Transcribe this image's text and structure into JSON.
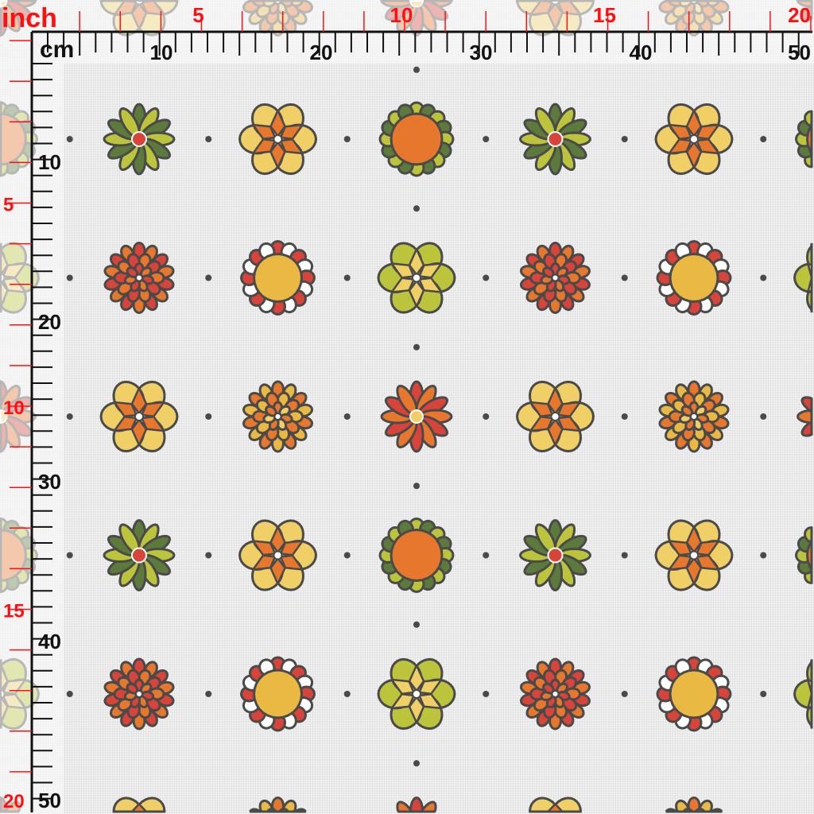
{
  "rulers": {
    "inch_unit": "inch",
    "cm_unit": "cm",
    "top_inch_labels": [
      "5",
      "10",
      "15",
      "20"
    ],
    "top_cm_labels": [
      "10",
      "20",
      "30",
      "40",
      "50"
    ],
    "left_inch_labels": [
      "5",
      "10",
      "15",
      "20"
    ],
    "left_cm_labels": [
      "10",
      "20",
      "30",
      "40",
      "50"
    ],
    "inch_color": "#ff1010",
    "cm_color": "#111111"
  },
  "pattern": {
    "background": "#ebebeb",
    "outline": "#4a4a4a",
    "dot_color": "#4a4a4a",
    "motif_tile": [
      [
        "green-daisy",
        "orange-star",
        "orange-sun"
      ],
      [
        "red-dahlia",
        "yellow-sun",
        "green-star"
      ],
      [
        "orange-star",
        "orange-dahlia",
        "red-daisy"
      ]
    ],
    "colors": {
      "dark_green": "#5b7a3c",
      "lime": "#bcc43c",
      "orange": "#e8772e",
      "red": "#d8433a",
      "yellow": "#e9b944",
      "light_yellow": "#f0cf66",
      "white": "#ffffff"
    }
  }
}
